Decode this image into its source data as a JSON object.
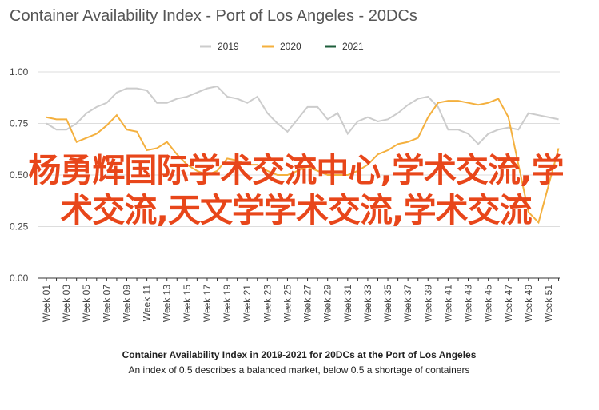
{
  "chart_data": {
    "type": "line",
    "title": "Container Availability Index - Port of Los Angeles - 20DCs",
    "categories": [
      "Week 01",
      null,
      "Week 03",
      null,
      "Week 05",
      null,
      "Week 07",
      null,
      "Week 09",
      null,
      "Week 11",
      null,
      "Week 13",
      null,
      "Week 15",
      null,
      "Week 17",
      null,
      "Week 19",
      null,
      "Week 21",
      null,
      "Week 23",
      null,
      "Week 25",
      null,
      "Week 27",
      null,
      "Week 29",
      null,
      "Week 31",
      null,
      "Week 33",
      null,
      "Week 35",
      null,
      "Week 37",
      null,
      "Week 39",
      null,
      "Week 41",
      null,
      "Week 43",
      null,
      "Week 45",
      null,
      "Week 47",
      null,
      "Week 49",
      null,
      "Week 51",
      null
    ],
    "series": [
      {
        "name": "2019",
        "color": "#cccccc",
        "values": [
          0.75,
          0.72,
          0.72,
          0.75,
          0.8,
          0.83,
          0.85,
          0.9,
          0.92,
          0.92,
          0.91,
          0.85,
          0.85,
          0.87,
          0.88,
          0.9,
          0.92,
          0.93,
          0.88,
          0.87,
          0.85,
          0.88,
          0.8,
          0.75,
          0.71,
          0.77,
          0.83,
          0.83,
          0.77,
          0.8,
          0.7,
          0.76,
          0.78,
          0.76,
          0.77,
          0.8,
          0.84,
          0.87,
          0.88,
          0.83,
          0.72,
          0.72,
          0.7,
          0.65,
          0.7,
          0.72,
          0.73,
          0.72,
          0.8,
          0.79,
          0.78,
          0.77
        ]
      },
      {
        "name": "2020",
        "color": "#f4b03e",
        "values": [
          0.78,
          0.77,
          0.77,
          0.66,
          0.68,
          0.7,
          0.74,
          0.79,
          0.72,
          0.71,
          0.62,
          0.63,
          0.66,
          0.6,
          0.55,
          0.52,
          0.5,
          0.52,
          0.58,
          0.57,
          0.55,
          0.55,
          0.52,
          0.5,
          0.5,
          0.52,
          0.54,
          0.52,
          0.5,
          0.5,
          0.5,
          0.52,
          0.55,
          0.6,
          0.62,
          0.65,
          0.66,
          0.68,
          0.78,
          0.85,
          0.86,
          0.86,
          0.85,
          0.84,
          0.85,
          0.87,
          0.78,
          0.55,
          0.32,
          0.27,
          0.45,
          0.63
        ]
      },
      {
        "name": "2021",
        "color": "#1e5e3b",
        "values": [
          null,
          null,
          null,
          null,
          null,
          null,
          null,
          null,
          null,
          null,
          null,
          null,
          null,
          null,
          null,
          null,
          null,
          null,
          null,
          null,
          null,
          null,
          null,
          null,
          null,
          null,
          null,
          null,
          null,
          null,
          null,
          null,
          null,
          null,
          null,
          null,
          null,
          null,
          null,
          null,
          null,
          null,
          null,
          null,
          null,
          null,
          null,
          null,
          null,
          null,
          null,
          null
        ]
      }
    ],
    "ylim": [
      0,
      1
    ],
    "yticks": [
      {
        "value": 0,
        "label": "0.00"
      },
      {
        "value": 0.25,
        "label": "0.25"
      },
      {
        "value": 0.5,
        "label": "0.50"
      },
      {
        "value": 0.75,
        "label": "0.75"
      },
      {
        "value": 1,
        "label": "1.00"
      }
    ],
    "grid": true,
    "legend": "top",
    "caption": "Container Availability Index in 2019-2021 for 20DCs at the Port of Los Angeles",
    "subcaption": "An index of 0.5 describes a balanced market, below 0.5 a shortage of containers",
    "annotation": "杨勇辉国际学术交流中心,学术交流,学术交流,天文学学术交流,学术交流"
  }
}
